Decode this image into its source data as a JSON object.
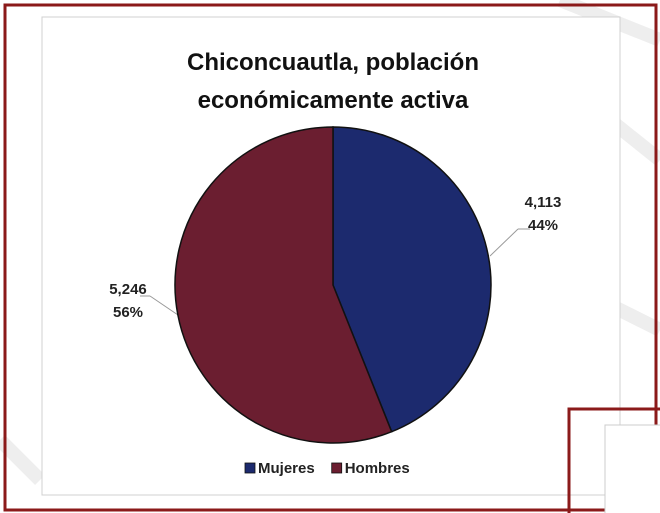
{
  "chart_data": {
    "type": "pie",
    "title": "Chiconcuautla, población económicamente activa",
    "categories": [
      "Mujeres",
      "Hombres"
    ],
    "values": [
      4113,
      5246
    ],
    "value_labels": [
      "4,113",
      "5,246"
    ],
    "percent_labels": [
      "44%",
      "56%"
    ],
    "colors": [
      "#1c2a6e",
      "#6b1e30"
    ],
    "legend": "bottom"
  }
}
